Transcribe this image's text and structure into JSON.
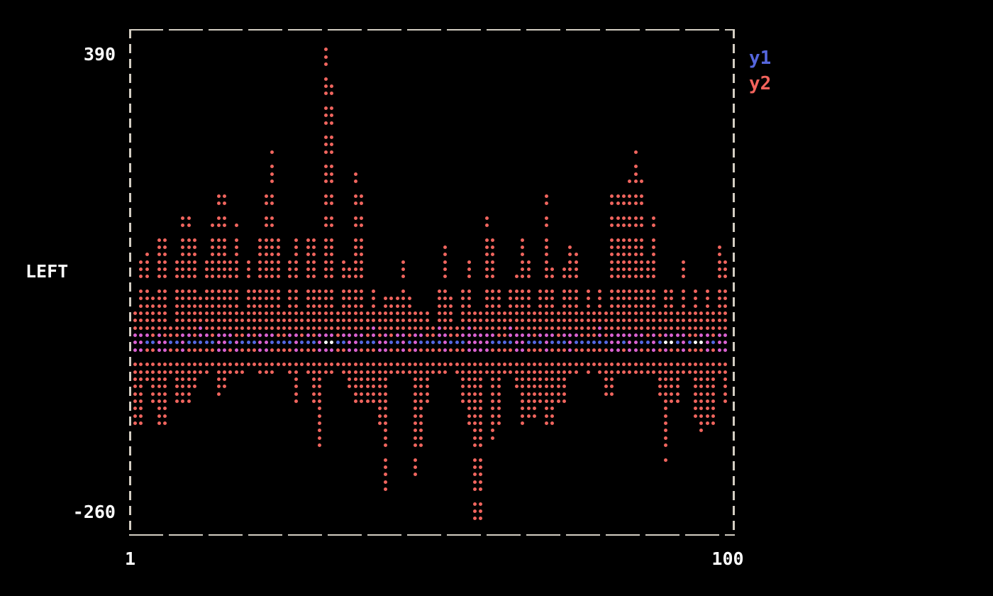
{
  "axis": {
    "y_max_label": "390",
    "y_min_label": "-260",
    "y_axis_label": "LEFT",
    "x_min_label": "1",
    "x_max_label": "100"
  },
  "legend": {
    "items": [
      {
        "name": "y1",
        "color": "#5566dd"
      },
      {
        "name": "y2",
        "color": "#f2635c"
      }
    ]
  },
  "chart_data": {
    "type": "scatter",
    "description": "Terminal dot-matrix scatter plot of two series over x=1..100. y2 (red) forms tall positive/negative dot columns; y1 (blue) is a near-zero line. Cells where both series overlap render magenta; a few overlap cells render white.",
    "x_range": [
      1,
      100
    ],
    "ylim": [
      -260,
      390
    ],
    "xlabel": "",
    "ylabel": "LEFT",
    "grid": false,
    "legend_position": "top-right-outside",
    "colors": {
      "y2": "#f0655e",
      "y1": "#5568e2",
      "overlap": "#da62d2",
      "bright": "#ffffff"
    },
    "row_value_mapping": {
      "value_at_row0": 418,
      "value_per_row": -10.4,
      "zero_row": 40,
      "rows": 69
    },
    "upper_gap_rows": [
      5,
      9,
      13,
      17,
      21,
      24,
      27,
      34
    ],
    "lower_gap_rows": [
      44,
      57,
      63
    ],
    "columns_key": "[y2_top_row, y2_bottom_row, y1_top_row, y1_bottom_row, white_flag] per x=1..100",
    "columns": [
      [
        38,
        53,
        41,
        43,
        0
      ],
      [
        31,
        53,
        41,
        43,
        0
      ],
      [
        30,
        47,
        41,
        42,
        0
      ],
      [
        36,
        50,
        42,
        42,
        0
      ],
      [
        28,
        53,
        41,
        43,
        0
      ],
      [
        28,
        53,
        42,
        43,
        0
      ],
      [
        40,
        46,
        42,
        42,
        0
      ],
      [
        31,
        50,
        42,
        42,
        0
      ],
      [
        25,
        50,
        41,
        43,
        0
      ],
      [
        25,
        50,
        41,
        42,
        0
      ],
      [
        28,
        48,
        42,
        42,
        0
      ],
      [
        36,
        46,
        40,
        42,
        0
      ],
      [
        31,
        46,
        41,
        42,
        0
      ],
      [
        26,
        45,
        42,
        42,
        0
      ],
      [
        22,
        49,
        41,
        43,
        0
      ],
      [
        22,
        48,
        41,
        43,
        0
      ],
      [
        31,
        46,
        41,
        42,
        0
      ],
      [
        26,
        46,
        42,
        43,
        0
      ],
      [
        38,
        46,
        42,
        42,
        0
      ],
      [
        31,
        45,
        41,
        42,
        0
      ],
      [
        35,
        45,
        42,
        42,
        0
      ],
      [
        28,
        46,
        41,
        43,
        0
      ],
      [
        22,
        46,
        41,
        43,
        0
      ],
      [
        16,
        46,
        41,
        42,
        0
      ],
      [
        28,
        45,
        42,
        42,
        0
      ],
      [
        38,
        45,
        42,
        42,
        0
      ],
      [
        31,
        46,
        41,
        42,
        0
      ],
      [
        28,
        50,
        41,
        43,
        0
      ],
      [
        38,
        45,
        42,
        42,
        0
      ],
      [
        28,
        46,
        41,
        42,
        0
      ],
      [
        28,
        50,
        42,
        42,
        0
      ],
      [
        35,
        56,
        41,
        43,
        0
      ],
      [
        2,
        46,
        41,
        43,
        1
      ],
      [
        7,
        46,
        41,
        43,
        1
      ],
      [
        38,
        45,
        42,
        42,
        0
      ],
      [
        31,
        46,
        41,
        42,
        0
      ],
      [
        32,
        48,
        41,
        43,
        0
      ],
      [
        19,
        50,
        41,
        43,
        0
      ],
      [
        22,
        50,
        41,
        42,
        0
      ],
      [
        38,
        50,
        42,
        42,
        0
      ],
      [
        35,
        50,
        40,
        42,
        0
      ],
      [
        38,
        53,
        42,
        43,
        0
      ],
      [
        36,
        62,
        41,
        43,
        0
      ],
      [
        36,
        46,
        42,
        42,
        0
      ],
      [
        36,
        46,
        41,
        42,
        0
      ],
      [
        31,
        46,
        41,
        43,
        0
      ],
      [
        36,
        46,
        42,
        42,
        0
      ],
      [
        38,
        60,
        41,
        43,
        0
      ],
      [
        38,
        56,
        41,
        42,
        0
      ],
      [
        38,
        50,
        42,
        42,
        0
      ],
      [
        40,
        46,
        42,
        42,
        0
      ],
      [
        35,
        46,
        40,
        42,
        0
      ],
      [
        29,
        46,
        41,
        43,
        0
      ],
      [
        36,
        45,
        42,
        42,
        0
      ],
      [
        40,
        46,
        42,
        42,
        0
      ],
      [
        35,
        50,
        41,
        42,
        0
      ],
      [
        31,
        53,
        40,
        43,
        0
      ],
      [
        38,
        66,
        41,
        43,
        0
      ],
      [
        38,
        66,
        41,
        43,
        0
      ],
      [
        25,
        46,
        41,
        43,
        0
      ],
      [
        28,
        55,
        41,
        42,
        0
      ],
      [
        35,
        53,
        42,
        42,
        0
      ],
      [
        38,
        46,
        42,
        42,
        0
      ],
      [
        35,
        46,
        40,
        42,
        0
      ],
      [
        33,
        48,
        41,
        43,
        0
      ],
      [
        28,
        53,
        41,
        43,
        0
      ],
      [
        31,
        52,
        41,
        42,
        0
      ],
      [
        38,
        52,
        42,
        42,
        0
      ],
      [
        35,
        50,
        41,
        42,
        0
      ],
      [
        22,
        53,
        41,
        43,
        0
      ],
      [
        32,
        53,
        41,
        42,
        0
      ],
      [
        38,
        50,
        42,
        42,
        0
      ],
      [
        32,
        50,
        41,
        42,
        0
      ],
      [
        29,
        46,
        41,
        43,
        0
      ],
      [
        30,
        46,
        41,
        42,
        0
      ],
      [
        38,
        45,
        42,
        42,
        0
      ],
      [
        35,
        46,
        42,
        42,
        0
      ],
      [
        38,
        45,
        42,
        42,
        0
      ],
      [
        35,
        46,
        40,
        42,
        0
      ],
      [
        38,
        49,
        42,
        42,
        0
      ],
      [
        22,
        49,
        41,
        43,
        0
      ],
      [
        21,
        46,
        41,
        43,
        0
      ],
      [
        22,
        46,
        41,
        42,
        0
      ],
      [
        20,
        46,
        41,
        43,
        0
      ],
      [
        16,
        46,
        41,
        43,
        0
      ],
      [
        20,
        46,
        41,
        42,
        0
      ],
      [
        31,
        46,
        42,
        42,
        0
      ],
      [
        25,
        46,
        41,
        43,
        0
      ],
      [
        38,
        49,
        42,
        42,
        0
      ],
      [
        35,
        58,
        41,
        43,
        1
      ],
      [
        35,
        50,
        41,
        42,
        1
      ],
      [
        38,
        50,
        41,
        42,
        0
      ],
      [
        31,
        46,
        41,
        43,
        0
      ],
      [
        38,
        46,
        42,
        42,
        0
      ],
      [
        35,
        52,
        42,
        42,
        1
      ],
      [
        38,
        54,
        41,
        42,
        1
      ],
      [
        35,
        53,
        41,
        43,
        0
      ],
      [
        38,
        53,
        42,
        42,
        0
      ],
      [
        29,
        46,
        41,
        43,
        0
      ],
      [
        31,
        50,
        41,
        43,
        0
      ]
    ]
  }
}
